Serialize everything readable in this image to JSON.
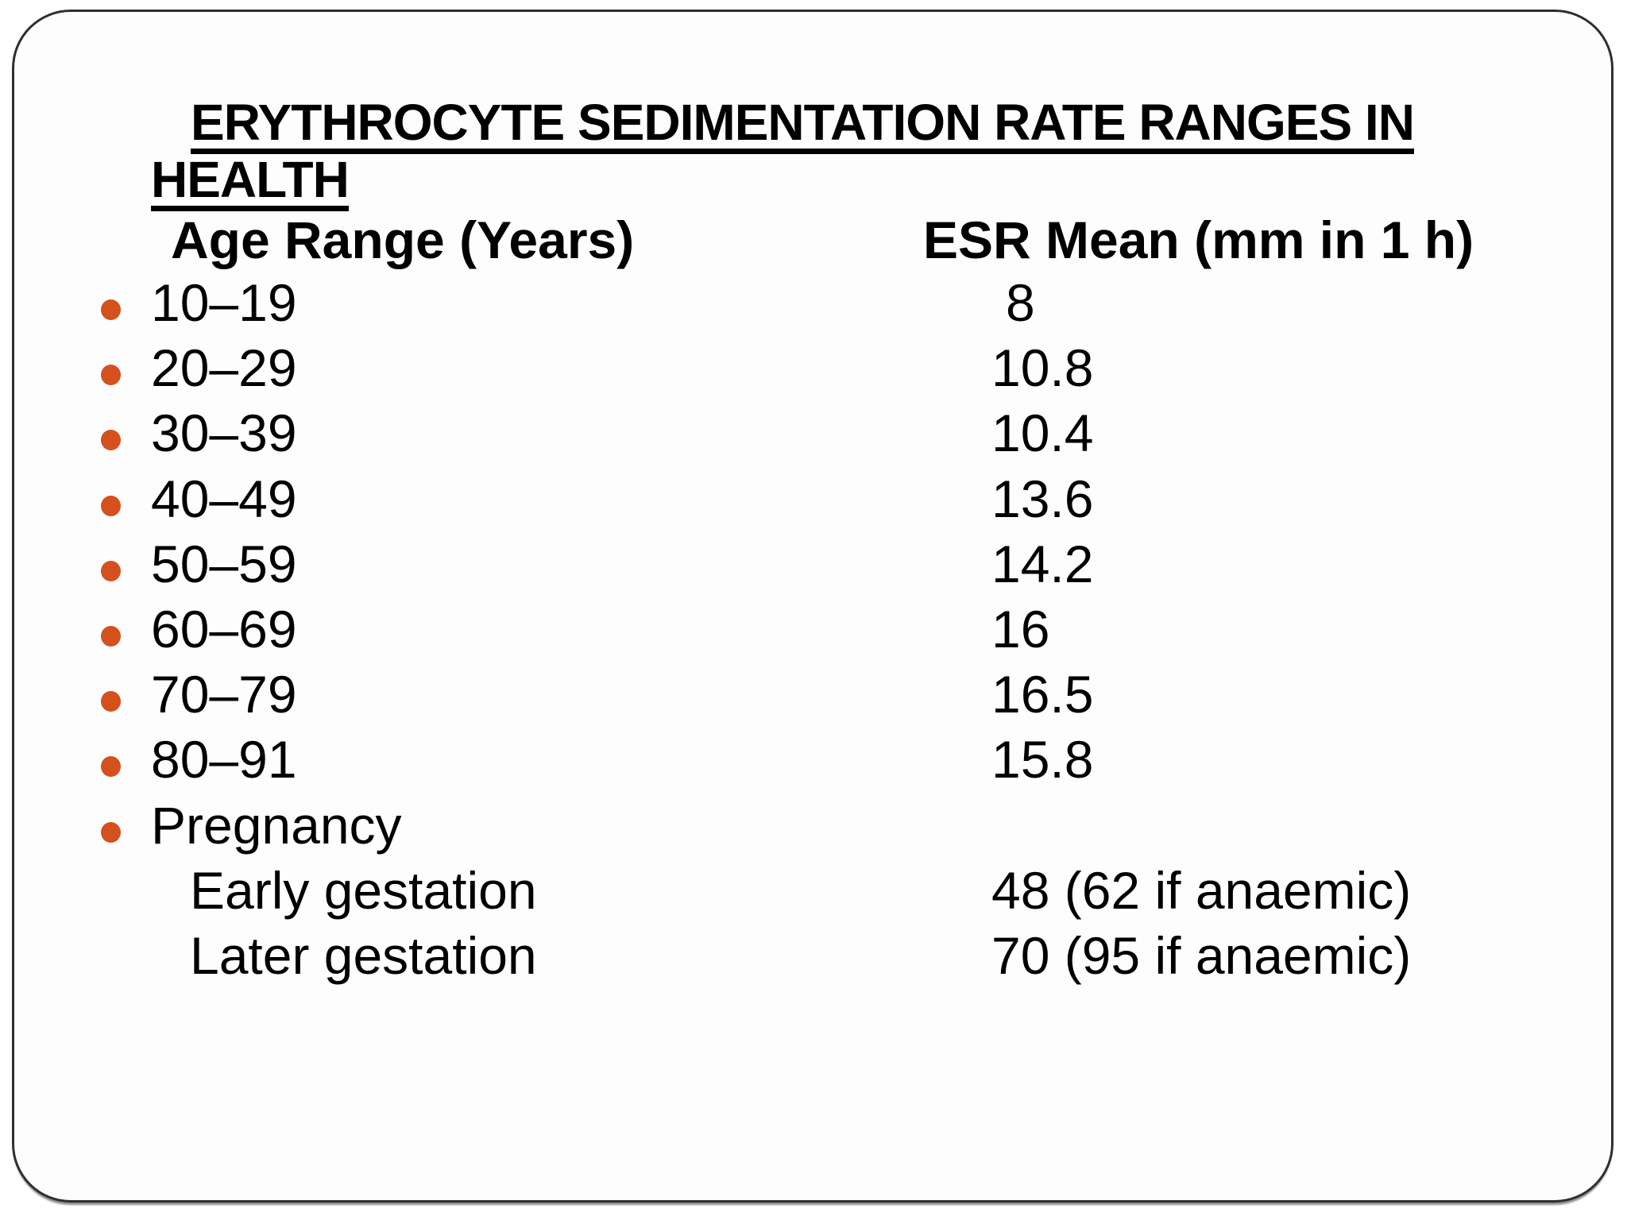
{
  "colors": {
    "bullet": "#d4511e",
    "border": "#2f2f2f",
    "background": "#fdfdfd",
    "text": "#000000"
  },
  "slide": {
    "title": {
      "line1": "ERYTHROCYTE SEDIMENTATION RATE RANGES IN",
      "line2": "HEALTH"
    },
    "table": {
      "col1_header": "Age Range (Years)",
      "col2_header": "ESR Mean (mm in 1 h)",
      "rows": [
        {
          "label": "10–19",
          "value": "8"
        },
        {
          "label": "20–29",
          "value": "10.8"
        },
        {
          "label": "30–39",
          "value": "10.4"
        },
        {
          "label": "40–49",
          "value": "13.6"
        },
        {
          "label": "50–59",
          "value": "14.2"
        },
        {
          "label": "60–69",
          "value": "16"
        },
        {
          "label": "70–79",
          "value": "16.5"
        },
        {
          "label": "80–91",
          "value": "15.8"
        },
        {
          "label": "Pregnancy",
          "value": ""
        },
        {
          "label": "Early gestation",
          "value": "48 (62 if anaemic)"
        },
        {
          "label": "Later gestation",
          "value": "70 (95 if anaemic)"
        }
      ]
    }
  }
}
